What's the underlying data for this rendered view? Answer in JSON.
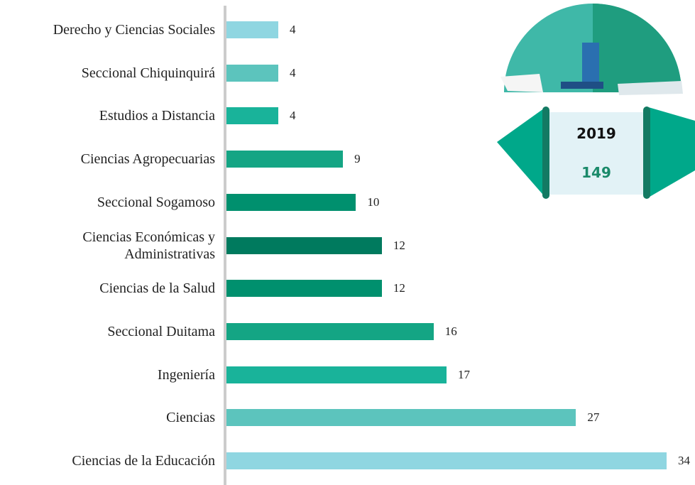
{
  "chart_data": {
    "type": "bar",
    "orientation": "horizontal",
    "categories": [
      "Derecho y Ciencias Sociales",
      "Seccional Chiquinquirá",
      "Estudios a Distancia",
      "Ciencias Agropecuarias",
      "Seccional Sogamoso",
      "Ciencias Económicas y Administrativas",
      "Ciencias de la Salud",
      "Seccional Duitama",
      "Ingeniería",
      "Ciencias",
      "Ciencias de la Educación"
    ],
    "values": [
      4,
      4,
      4,
      9,
      10,
      12,
      12,
      16,
      17,
      27,
      34
    ],
    "colors": [
      "#8fd6e1",
      "#5cc4bd",
      "#19b39a",
      "#14a584",
      "#00906e",
      "#007a5e",
      "#00906e",
      "#14a584",
      "#19b39a",
      "#5cc4bd",
      "#8fd6e1"
    ]
  },
  "badge": {
    "year": "2019",
    "total": 149
  }
}
